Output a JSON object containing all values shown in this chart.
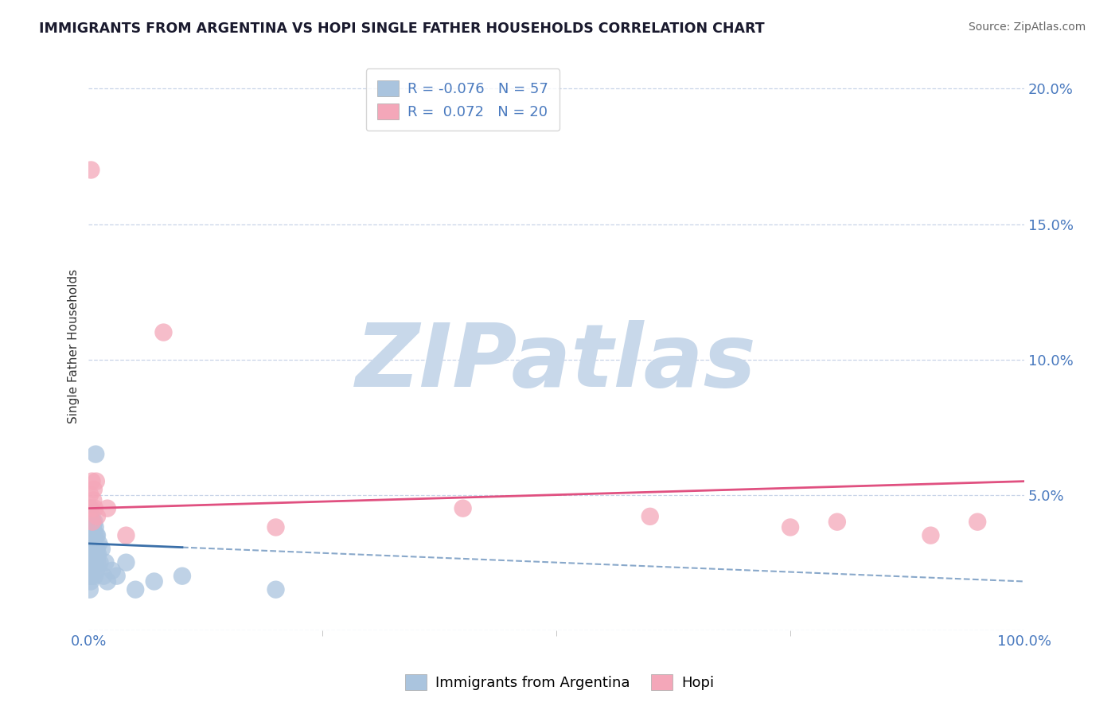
{
  "title": "IMMIGRANTS FROM ARGENTINA VS HOPI SINGLE FATHER HOUSEHOLDS CORRELATION CHART",
  "source": "Source: ZipAtlas.com",
  "ylabel": "Single Father Households",
  "watermark": "ZIPatlas",
  "xlim": [
    0,
    100
  ],
  "ylim": [
    0,
    21
  ],
  "ytick_vals": [
    0,
    5,
    10,
    15,
    20
  ],
  "ytick_labels": [
    "",
    "5.0%",
    "10.0%",
    "15.0%",
    "20.0%"
  ],
  "legend_x_label": "Immigrants from Argentina",
  "legend_hopi_label": "Hopi",
  "series_blue": {
    "R": -0.076,
    "N": 57,
    "color": "#aac4de",
    "line_color": "#3a6fa8",
    "x": [
      0.05,
      0.08,
      0.1,
      0.12,
      0.14,
      0.15,
      0.16,
      0.18,
      0.2,
      0.22,
      0.24,
      0.25,
      0.28,
      0.3,
      0.32,
      0.34,
      0.35,
      0.36,
      0.38,
      0.4,
      0.42,
      0.44,
      0.45,
      0.48,
      0.5,
      0.52,
      0.55,
      0.58,
      0.6,
      0.62,
      0.64,
      0.66,
      0.68,
      0.7,
      0.72,
      0.75,
      0.78,
      0.8,
      0.82,
      0.85,
      0.88,
      0.9,
      0.95,
      1.0,
      1.1,
      1.2,
      1.4,
      1.6,
      1.8,
      2.0,
      2.5,
      3.0,
      4.0,
      5.0,
      7.0,
      10.0,
      20.0
    ],
    "y": [
      2.5,
      3.0,
      2.0,
      1.5,
      3.5,
      4.5,
      2.8,
      3.2,
      2.2,
      1.8,
      4.0,
      3.0,
      2.5,
      3.8,
      2.0,
      3.5,
      4.2,
      2.8,
      3.0,
      3.5,
      2.5,
      4.0,
      3.2,
      2.8,
      3.8,
      3.0,
      2.5,
      3.2,
      4.0,
      2.8,
      3.5,
      2.0,
      3.0,
      3.8,
      2.5,
      6.5,
      3.0,
      2.2,
      3.5,
      2.8,
      3.0,
      3.5,
      2.5,
      2.8,
      3.2,
      2.5,
      3.0,
      2.0,
      2.5,
      1.8,
      2.2,
      2.0,
      2.5,
      1.5,
      1.8,
      2.0,
      1.5
    ],
    "trend_x": [
      0,
      100
    ],
    "trend_y": [
      3.2,
      1.8
    ],
    "trend_solid_end": 10
  },
  "series_pink": {
    "R": 0.072,
    "N": 20,
    "color": "#f4a7b9",
    "line_color": "#e05080",
    "x": [
      0.15,
      0.25,
      0.28,
      0.35,
      0.4,
      0.5,
      0.55,
      0.65,
      0.8,
      0.9,
      2.0,
      4.0,
      8.0,
      20.0,
      40.0,
      60.0,
      75.0,
      80.0,
      90.0,
      95.0
    ],
    "y": [
      5.0,
      17.0,
      4.5,
      5.5,
      4.0,
      4.8,
      5.2,
      4.5,
      5.5,
      4.2,
      4.5,
      3.5,
      11.0,
      3.8,
      4.5,
      4.2,
      3.8,
      4.0,
      3.5,
      4.0
    ],
    "trend_x": [
      0,
      100
    ],
    "trend_y": [
      4.5,
      5.5
    ]
  },
  "background_color": "#ffffff",
  "grid_color": "#c8d4e8",
  "title_color": "#1a1a2e",
  "source_color": "#666666",
  "watermark_color": "#c8d8ea",
  "tick_color": "#4a7abf"
}
